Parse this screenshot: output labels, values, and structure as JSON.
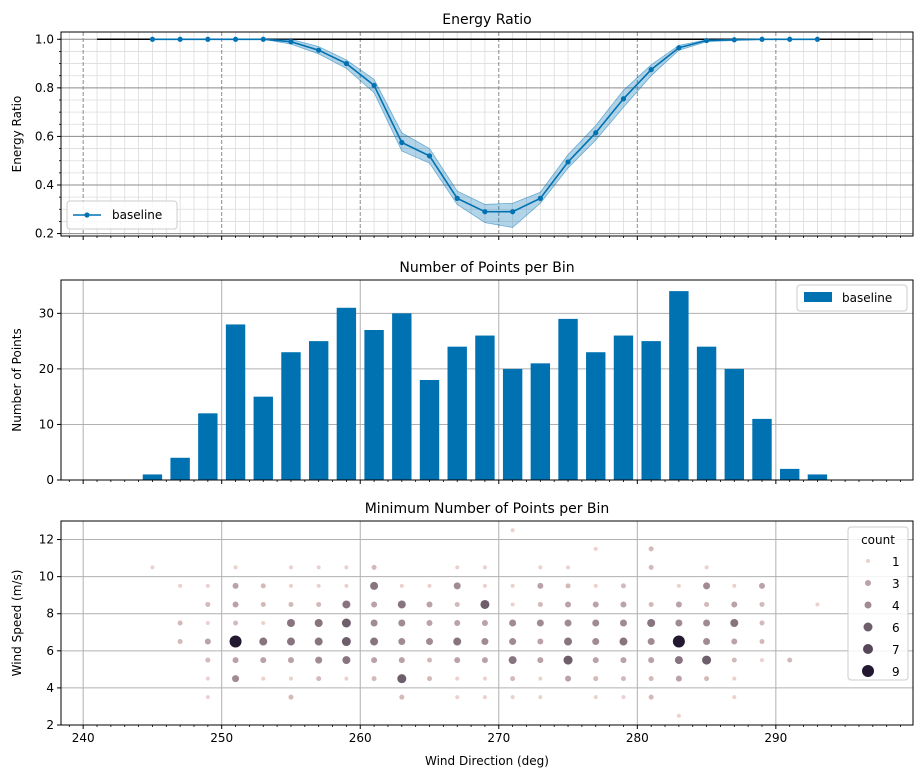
{
  "chart_data": [
    {
      "type": "line",
      "title": "Energy Ratio",
      "ylabel": "Energy Ratio",
      "xlim": [
        238.4,
        299.9
      ],
      "ylim": [
        0.19,
        1.03
      ],
      "yticks": [
        0.2,
        0.4,
        0.6,
        0.8,
        1.0
      ],
      "ytick_labels": [
        "0.2",
        "0.4",
        "0.6",
        "0.8",
        "1.0"
      ],
      "series": [
        {
          "name": "baseline",
          "color": "#0072B2",
          "x": [
            245,
            247,
            249,
            251,
            253,
            255,
            257,
            259,
            261,
            263,
            265,
            267,
            269,
            271,
            273,
            275,
            277,
            279,
            281,
            283,
            285,
            287,
            289,
            291,
            293
          ],
          "y": [
            1.0,
            1.0,
            1.0,
            1.0,
            1.0,
            0.99,
            0.955,
            0.9,
            0.81,
            0.575,
            0.52,
            0.345,
            0.29,
            0.29,
            0.345,
            0.495,
            0.615,
            0.755,
            0.875,
            0.965,
            0.995,
            0.998,
            1.0,
            1.0,
            1.0
          ],
          "lower": [
            1.0,
            1.0,
            1.0,
            1.0,
            1.0,
            0.98,
            0.94,
            0.88,
            0.78,
            0.54,
            0.49,
            0.32,
            0.245,
            0.225,
            0.325,
            0.47,
            0.585,
            0.72,
            0.85,
            0.955,
            0.99,
            0.995,
            1.0,
            1.0,
            1.0
          ],
          "upper": [
            1.0,
            1.0,
            1.0,
            1.0,
            1.0,
            1.0,
            0.97,
            0.915,
            0.835,
            0.615,
            0.55,
            0.375,
            0.32,
            0.325,
            0.37,
            0.525,
            0.645,
            0.79,
            0.895,
            0.975,
            0.998,
            1.0,
            1.0,
            1.0,
            1.0
          ]
        }
      ],
      "reference_line": {
        "x": [
          241,
          297
        ],
        "y": 1.0,
        "color": "#000000"
      },
      "legend": {
        "entries": [
          "baseline"
        ],
        "location": "lower-left"
      }
    },
    {
      "type": "bar",
      "title": "Number of Points per Bin",
      "ylabel": "Number of Points",
      "xlim": [
        238.4,
        299.9
      ],
      "ylim": [
        0,
        36
      ],
      "yticks": [
        0,
        10,
        20,
        30
      ],
      "ytick_labels": [
        "0",
        "10",
        "20",
        "30"
      ],
      "x": [
        245,
        247,
        249,
        251,
        253,
        255,
        257,
        259,
        261,
        263,
        265,
        267,
        269,
        271,
        273,
        275,
        277,
        279,
        281,
        283,
        285,
        287,
        289,
        291,
        293
      ],
      "bar_width": 1.4,
      "series": [
        {
          "name": "baseline",
          "color": "#0072B2",
          "values": [
            1,
            4,
            12,
            28,
            15,
            23,
            25,
            31,
            27,
            30,
            18,
            24,
            26,
            20,
            21,
            29,
            23,
            26,
            25,
            34,
            24,
            20,
            11,
            2,
            1
          ]
        }
      ],
      "legend": {
        "entries": [
          "baseline"
        ],
        "location": "upper-right"
      }
    },
    {
      "type": "scatter",
      "title": "Minimum Number of Points per Bin",
      "xlabel": "Wind Direction (deg)",
      "ylabel": "Wind Speed (m/s)",
      "xlim": [
        238.4,
        299.9
      ],
      "ylim": [
        2,
        13
      ],
      "xticks": [
        240,
        250,
        260,
        270,
        280,
        290
      ],
      "xtick_labels": [
        "240",
        "250",
        "260",
        "270",
        "280",
        "290"
      ],
      "yticks": [
        2,
        4,
        6,
        8,
        10,
        12
      ],
      "ytick_labels": [
        "2",
        "4",
        "6",
        "8",
        "10",
        "12"
      ],
      "legend": {
        "title": "count",
        "location": "upper-right",
        "entries": [
          {
            "label": "1",
            "count": 1
          },
          {
            "label": "3",
            "count": 3
          },
          {
            "label": "4",
            "count": 4
          },
          {
            "label": "6",
            "count": 6
          },
          {
            "label": "7",
            "count": 7
          },
          {
            "label": "9",
            "count": 9
          }
        ]
      },
      "points": [
        [
          245,
          10.5,
          1
        ],
        [
          247,
          9.5,
          1
        ],
        [
          247,
          7.5,
          2
        ],
        [
          247,
          6.5,
          2
        ],
        [
          249,
          9.5,
          1
        ],
        [
          249,
          8.5,
          2
        ],
        [
          249,
          7.5,
          1
        ],
        [
          249,
          6.5,
          3
        ],
        [
          249,
          5.5,
          2
        ],
        [
          249,
          4.5,
          1
        ],
        [
          249,
          3.5,
          1
        ],
        [
          251,
          10.5,
          1
        ],
        [
          251,
          9.5,
          3
        ],
        [
          251,
          8.5,
          3
        ],
        [
          251,
          7.5,
          2
        ],
        [
          251,
          6.5,
          9
        ],
        [
          251,
          5.5,
          3
        ],
        [
          251,
          4.5,
          4
        ],
        [
          253,
          9.5,
          2
        ],
        [
          253,
          8.5,
          2
        ],
        [
          253,
          7.5,
          1
        ],
        [
          253,
          6.5,
          5
        ],
        [
          253,
          5.5,
          3
        ],
        [
          253,
          4.5,
          1
        ],
        [
          255,
          10.5,
          1
        ],
        [
          255,
          9.5,
          1
        ],
        [
          255,
          8.5,
          2
        ],
        [
          255,
          7.5,
          5
        ],
        [
          255,
          6.5,
          5
        ],
        [
          255,
          5.5,
          3
        ],
        [
          255,
          4.5,
          1
        ],
        [
          255,
          3.5,
          2
        ],
        [
          257,
          10.5,
          1
        ],
        [
          257,
          9.5,
          1
        ],
        [
          257,
          8.5,
          2
        ],
        [
          257,
          7.5,
          5
        ],
        [
          257,
          6.5,
          5
        ],
        [
          257,
          5.5,
          4
        ],
        [
          257,
          4.5,
          2
        ],
        [
          259,
          10.5,
          1
        ],
        [
          259,
          9.5,
          1
        ],
        [
          259,
          8.5,
          5
        ],
        [
          259,
          7.5,
          6
        ],
        [
          259,
          6.5,
          6
        ],
        [
          259,
          5.5,
          5
        ],
        [
          259,
          4.5,
          1
        ],
        [
          261,
          10.5,
          2
        ],
        [
          261,
          9.5,
          5
        ],
        [
          261,
          8.5,
          3
        ],
        [
          261,
          7.5,
          4
        ],
        [
          261,
          6.5,
          5
        ],
        [
          261,
          5.5,
          3
        ],
        [
          261,
          4.5,
          2
        ],
        [
          263,
          9.5,
          1
        ],
        [
          263,
          8.5,
          5
        ],
        [
          263,
          7.5,
          4
        ],
        [
          263,
          6.5,
          4
        ],
        [
          263,
          5.5,
          3
        ],
        [
          263,
          4.5,
          6
        ],
        [
          263,
          3.5,
          2
        ],
        [
          265,
          9.5,
          1
        ],
        [
          265,
          8.5,
          3
        ],
        [
          265,
          7.5,
          3
        ],
        [
          265,
          6.5,
          4
        ],
        [
          265,
          5.5,
          2
        ],
        [
          265,
          4.5,
          2
        ],
        [
          267,
          10.5,
          1
        ],
        [
          267,
          9.5,
          4
        ],
        [
          267,
          8.5,
          2
        ],
        [
          267,
          7.5,
          3
        ],
        [
          267,
          6.5,
          5
        ],
        [
          267,
          5.5,
          3
        ],
        [
          267,
          4.5,
          1
        ],
        [
          267,
          3.5,
          1
        ],
        [
          269,
          10.5,
          1
        ],
        [
          269,
          9.5,
          1
        ],
        [
          269,
          8.5,
          6
        ],
        [
          269,
          7.5,
          3
        ],
        [
          269,
          6.5,
          4
        ],
        [
          269,
          5.5,
          3
        ],
        [
          269,
          4.5,
          1
        ],
        [
          269,
          3.5,
          1
        ],
        [
          271,
          12.5,
          1
        ],
        [
          271,
          9.5,
          1
        ],
        [
          271,
          8.5,
          1
        ],
        [
          271,
          7.5,
          4
        ],
        [
          271,
          6.5,
          4
        ],
        [
          271,
          5.5,
          5
        ],
        [
          271,
          4.5,
          2
        ],
        [
          271,
          3.5,
          1
        ],
        [
          273,
          10.5,
          1
        ],
        [
          273,
          9.5,
          3
        ],
        [
          273,
          8.5,
          2
        ],
        [
          273,
          7.5,
          4
        ],
        [
          273,
          6.5,
          3
        ],
        [
          273,
          5.5,
          3
        ],
        [
          273,
          4.5,
          1
        ],
        [
          273,
          3.5,
          1
        ],
        [
          275,
          10.5,
          1
        ],
        [
          275,
          9.5,
          2
        ],
        [
          275,
          8.5,
          3
        ],
        [
          275,
          7.5,
          4
        ],
        [
          275,
          6.5,
          5
        ],
        [
          275,
          5.5,
          6
        ],
        [
          275,
          4.5,
          3
        ],
        [
          277,
          11.5,
          1
        ],
        [
          277,
          9.5,
          1
        ],
        [
          277,
          8.5,
          3
        ],
        [
          277,
          7.5,
          4
        ],
        [
          277,
          6.5,
          4
        ],
        [
          277,
          5.5,
          3
        ],
        [
          277,
          4.5,
          2
        ],
        [
          277,
          3.5,
          1
        ],
        [
          279,
          9.5,
          2
        ],
        [
          279,
          8.5,
          3
        ],
        [
          279,
          7.5,
          4
        ],
        [
          279,
          6.5,
          5
        ],
        [
          279,
          5.5,
          3
        ],
        [
          279,
          4.5,
          2
        ],
        [
          279,
          3.5,
          1
        ],
        [
          281,
          11.5,
          2
        ],
        [
          281,
          10.5,
          2
        ],
        [
          281,
          8.5,
          2
        ],
        [
          281,
          7.5,
          5
        ],
        [
          281,
          6.5,
          4
        ],
        [
          281,
          5.5,
          3
        ],
        [
          281,
          4.5,
          2
        ],
        [
          281,
          3.5,
          2
        ],
        [
          283,
          9.5,
          1
        ],
        [
          283,
          8.5,
          3
        ],
        [
          283,
          7.5,
          4
        ],
        [
          283,
          6.5,
          9
        ],
        [
          283,
          5.5,
          5
        ],
        [
          283,
          4.5,
          3
        ],
        [
          283,
          2.5,
          1
        ],
        [
          285,
          10.5,
          1
        ],
        [
          285,
          9.5,
          4
        ],
        [
          285,
          8.5,
          2
        ],
        [
          285,
          7.5,
          4
        ],
        [
          285,
          6.5,
          4
        ],
        [
          285,
          5.5,
          6
        ],
        [
          285,
          4.5,
          2
        ],
        [
          287,
          9.5,
          1
        ],
        [
          287,
          8.5,
          3
        ],
        [
          287,
          7.5,
          5
        ],
        [
          287,
          6.5,
          3
        ],
        [
          287,
          5.5,
          2
        ],
        [
          287,
          4.5,
          1
        ],
        [
          287,
          3.5,
          1
        ],
        [
          289,
          9.5,
          3
        ],
        [
          289,
          8.5,
          2
        ],
        [
          289,
          7.5,
          2
        ],
        [
          289,
          6.5,
          2
        ],
        [
          289,
          5.5,
          1
        ],
        [
          291,
          5.5,
          2
        ],
        [
          293,
          8.5,
          1
        ]
      ]
    }
  ]
}
